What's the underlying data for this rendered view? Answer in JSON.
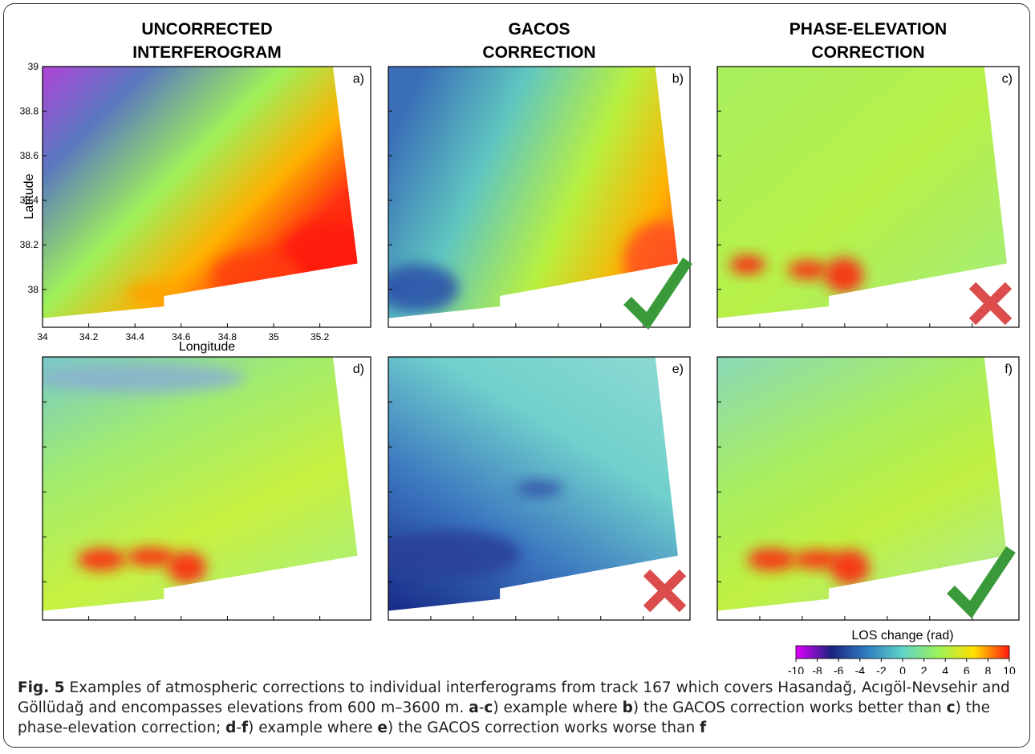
{
  "figure": {
    "columns": [
      [
        "UNCORRECTED",
        "INTERFEROGRAM"
      ],
      [
        "GACOS",
        "CORRECTION"
      ],
      [
        "PHASE-ELEVATION",
        "CORRECTION"
      ]
    ],
    "panels": [
      "a)",
      "b)",
      "c)",
      "d)",
      "e)",
      "f)"
    ],
    "axes": {
      "ylabel": "Latitude",
      "xlabel": "Longitude",
      "xlim": [
        34,
        35.42
      ],
      "ylim": [
        37.83,
        39.0
      ],
      "xticks": [
        34,
        34.2,
        34.4,
        34.6,
        34.8,
        35,
        35.2
      ],
      "yticks": [
        39,
        38.8,
        38.6,
        38.4,
        38.2,
        38
      ]
    },
    "colorbar": {
      "label": "LOS change (rad)",
      "clim": [
        -10,
        10
      ],
      "ticks": [
        -10,
        -8,
        -6,
        -4,
        -2,
        0,
        2,
        4,
        6,
        8,
        10
      ],
      "colors": [
        "#e000ff",
        "#1a237e",
        "#2f7fc1",
        "#5fd3c8",
        "#9bf25a",
        "#ffe000",
        "#ff1a10"
      ]
    },
    "caption": [
      "Fig. 5",
      " Examples of atmospheric corrections to individual interferograms from track 167 which covers Hasandağ, Acıgöl-Nevsehir and Göllüdağ and encompasses elevations from 600 m–3600 m. ",
      "a",
      "-",
      "c",
      ") example where ",
      "b",
      ") the GACOS correction works better than ",
      "c",
      ") the phase-elevation correction; ",
      "d",
      "-",
      "f",
      ") example where ",
      "e",
      ") the GACOS correction works worse than ",
      "f",
      ") the phase-elevation correction"
    ]
  }
}
